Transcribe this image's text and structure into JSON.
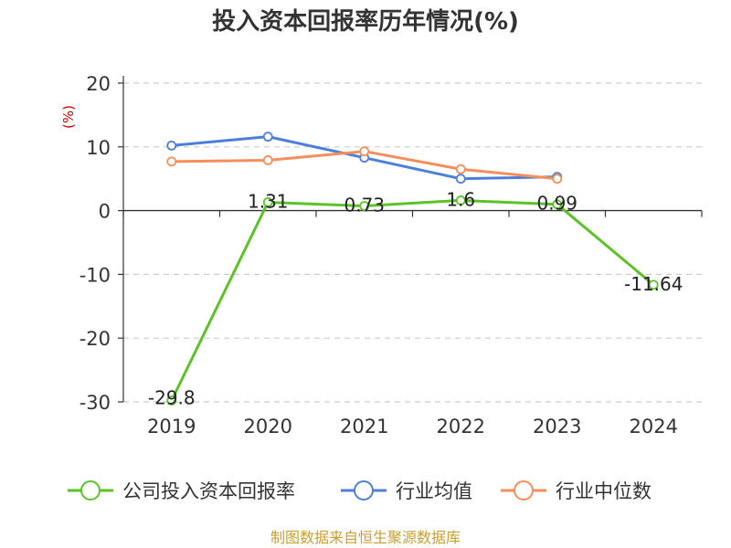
{
  "chart_data": {
    "type": "line",
    "title": "投入资本回报率历年情况(%)",
    "ylabel": "(%)",
    "categories": [
      "2019",
      "2020",
      "2021",
      "2022",
      "2023",
      "2024"
    ],
    "ylim": [
      -30,
      20
    ],
    "yticks": [
      20,
      10,
      0,
      -10,
      -20,
      -30
    ],
    "grid": "horizontal-dashed",
    "legend_position": "bottom",
    "series": [
      {
        "name": "公司投入资本回报率",
        "color": "#5cc227",
        "values": [
          -29.8,
          1.31,
          0.73,
          1.6,
          0.99,
          -11.64
        ],
        "labels": [
          "-29.8",
          "1.31",
          "0.73",
          "1.6",
          "0.99",
          "-11.64"
        ]
      },
      {
        "name": "行业均值",
        "color": "#4e7fd8",
        "values": [
          10.2,
          11.6,
          8.3,
          5.0,
          5.3,
          null
        ]
      },
      {
        "name": "行业中位数",
        "color": "#f48e5a",
        "values": [
          7.7,
          7.9,
          9.3,
          6.5,
          5.0,
          null
        ]
      }
    ],
    "source": "制图数据来自恒生聚源数据库"
  }
}
